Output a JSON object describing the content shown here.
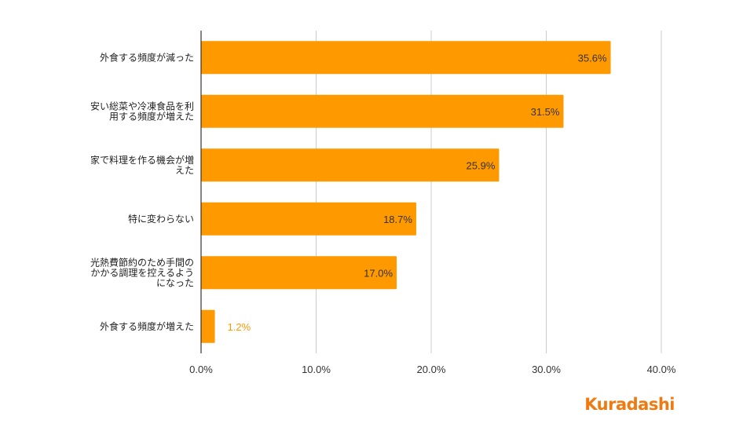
{
  "chart_data": {
    "type": "bar",
    "orientation": "horizontal",
    "categories": [
      "外食する頻度が減った",
      "安い総菜や冷凍食品を利用する頻度が増えた",
      "家で料理を作る機会が増えた",
      "特に変わらない",
      "光熱費節約のため手間のかかる調理を控えるようになった",
      "外食する頻度が増えた"
    ],
    "category_lines": [
      [
        "外食する頻度が減った"
      ],
      [
        "安い総菜や冷凍食品を利",
        "用する頻度が増えた"
      ],
      [
        "家で料理を作る機会が増",
        "えた"
      ],
      [
        "特に変わらない"
      ],
      [
        "光熱費節約のため手間の",
        "かかる調理を控えるよう",
        "になった"
      ],
      [
        "外食する頻度が増えた"
      ]
    ],
    "values": [
      35.6,
      31.5,
      25.9,
      18.7,
      17.0,
      1.2
    ],
    "data_labels": [
      "35.6%",
      "31.5%",
      "25.9%",
      "18.7%",
      "17.0%",
      "1.2%"
    ],
    "xlim": [
      0,
      40
    ],
    "x_ticks": [
      0,
      10,
      20,
      30,
      40
    ],
    "x_tick_labels": [
      "0.0%",
      "10.0%",
      "20.0%",
      "30.0%",
      "40.0%"
    ],
    "grid": true,
    "bar_color": "#ff9900",
    "inside_label_color": "#333333",
    "outside_label_color": "#ff9900",
    "grid_color": "#cccccc"
  },
  "logo": {
    "text": "Kuradashi",
    "color": "#ee7a10"
  }
}
